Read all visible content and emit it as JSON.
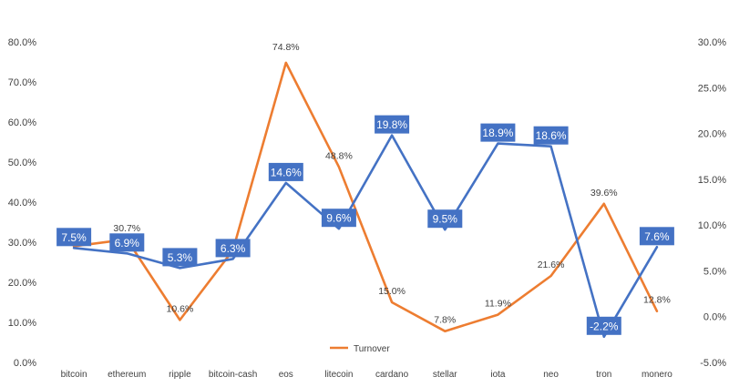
{
  "chart_data": {
    "type": "line",
    "categories": [
      "bitcoin",
      "ethereum",
      "ripple",
      "bitcoin-cash",
      "eos",
      "litecoin",
      "cardano",
      "stellar",
      "iota",
      "neo",
      "tron",
      "monero"
    ],
    "series": [
      {
        "name": "Turnover",
        "axis": "left",
        "color": "#ED7D31",
        "values": [
          29.0,
          30.7,
          10.6,
          28.0,
          74.8,
          48.8,
          15.0,
          7.8,
          11.9,
          21.6,
          39.6,
          12.8
        ],
        "labels": [
          "",
          "30.7%",
          "10.6%",
          "",
          "74.8%",
          "48.8%",
          "15.0%",
          "7.8%",
          "11.9%",
          "21.6%",
          "39.6%",
          "12.8%"
        ]
      },
      {
        "name": "",
        "axis": "right",
        "color": "#4472C4",
        "values": [
          7.5,
          6.9,
          5.3,
          6.3,
          14.6,
          9.6,
          19.8,
          9.5,
          18.9,
          18.6,
          -2.2,
          7.6
        ],
        "labels": [
          "7.5%",
          "6.9%",
          "5.3%",
          "6.3%",
          "14.6%",
          "9.6%",
          "19.8%",
          "9.5%",
          "18.9%",
          "18.6%",
          "-2.2%",
          "7.6%"
        ]
      }
    ],
    "y_left": {
      "min": 0,
      "max": 80,
      "step": 10,
      "ticks": [
        "0.0%",
        "10.0%",
        "20.0%",
        "30.0%",
        "40.0%",
        "50.0%",
        "60.0%",
        "70.0%",
        "80.0%"
      ]
    },
    "y_right": {
      "min": -5,
      "max": 30,
      "step": 5,
      "ticks": [
        "-5.0%",
        "0.0%",
        "5.0%",
        "10.0%",
        "15.0%",
        "20.0%",
        "25.0%",
        "30.0%"
      ]
    },
    "legend": {
      "position": "bottom",
      "entries": [
        "Turnover"
      ]
    },
    "grid": false
  }
}
